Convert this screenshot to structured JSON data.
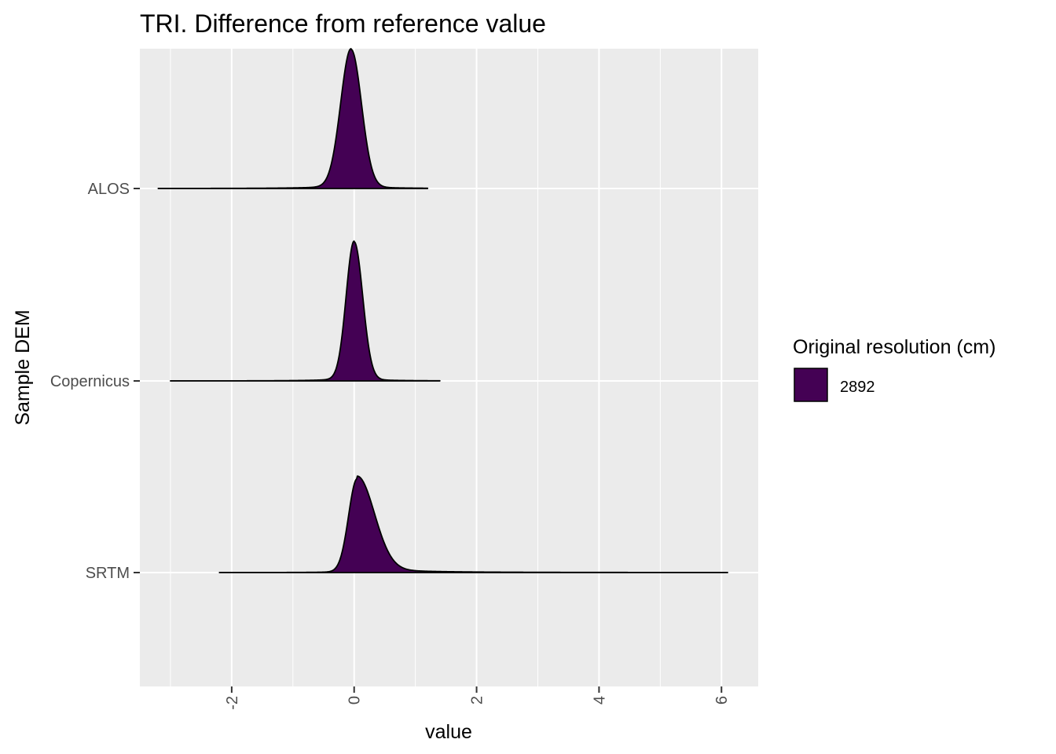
{
  "chart_data": {
    "type": "ridgeline-density",
    "title": "TRI. Difference from reference value",
    "xlabel": "value",
    "ylabel": "Sample DEM",
    "xlim": [
      -3.5,
      6.6
    ],
    "x_ticks": [
      -2,
      0,
      2,
      4,
      6
    ],
    "x_tick_labels": [
      "-2",
      "0",
      "2",
      "4",
      "6"
    ],
    "categories": [
      "ALOS",
      "Copernicus",
      "SRTM"
    ],
    "series": [
      {
        "name": "ALOS",
        "x_min": -3.2,
        "x_max": 1.2,
        "peak_x": -0.05,
        "peak_height": 1.0,
        "left_spread": 0.17,
        "right_spread": 0.17,
        "left_tail_weight": 0.02,
        "right_tail_weight": 0.015
      },
      {
        "name": "Copernicus",
        "x_min": -3.0,
        "x_max": 1.4,
        "peak_x": 0.0,
        "peak_height": 1.0,
        "left_spread": 0.13,
        "right_spread": 0.14,
        "left_tail_weight": 0.02,
        "right_tail_weight": 0.015
      },
      {
        "name": "SRTM",
        "x_min": -2.2,
        "x_max": 6.1,
        "peak_x": 0.05,
        "peak_height": 0.69,
        "left_spread": 0.14,
        "right_spread": 0.28,
        "left_tail_weight": 0.012,
        "right_tail_weight": 0.04
      }
    ],
    "grid": true,
    "legend": {
      "title": "Original resolution (cm)",
      "entries": [
        {
          "label": "2892",
          "color": "#440154"
        }
      ],
      "position": "right"
    }
  },
  "colors": {
    "panel_background": "#ebebeb",
    "grid": "#ffffff",
    "fill": "#440154",
    "outline": "#000000",
    "tick_text": "#4d4d4d"
  }
}
